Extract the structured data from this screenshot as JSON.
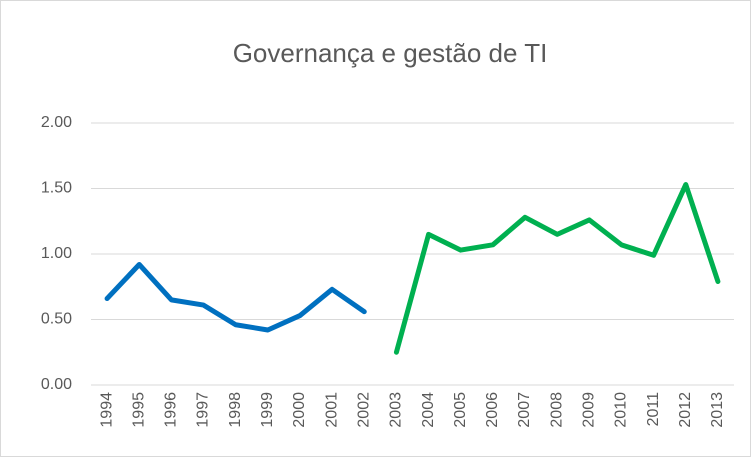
{
  "chart_data": {
    "type": "line",
    "title": "Governança e gestão de TI",
    "categories": [
      "1994",
      "1995",
      "1996",
      "1997",
      "1998",
      "1999",
      "2000",
      "2001",
      "2002",
      "2003",
      "2004",
      "2005",
      "2006",
      "2007",
      "2008",
      "2009",
      "2010",
      "2011",
      "2012",
      "2013"
    ],
    "series": [
      {
        "color": "#0070c0",
        "values": [
          0.66,
          0.92,
          0.65,
          0.61,
          0.46,
          0.42,
          0.53,
          0.73,
          0.56,
          null,
          null,
          null,
          null,
          null,
          null,
          null,
          null,
          null,
          null,
          null
        ]
      },
      {
        "color": "#00b050",
        "values": [
          null,
          null,
          null,
          null,
          null,
          null,
          null,
          null,
          null,
          0.25,
          1.15,
          1.03,
          1.07,
          1.28,
          1.15,
          1.26,
          1.07,
          0.99,
          1.53,
          0.79
        ]
      }
    ],
    "ylim": [
      0,
      2
    ],
    "yticks": [
      {
        "value": 0,
        "label": "0.00"
      },
      {
        "value": 0.5,
        "label": "0.50"
      },
      {
        "value": 1,
        "label": "1.00"
      },
      {
        "value": 1.5,
        "label": "1.50"
      },
      {
        "value": 2,
        "label": "2.00"
      }
    ],
    "grid": true
  }
}
